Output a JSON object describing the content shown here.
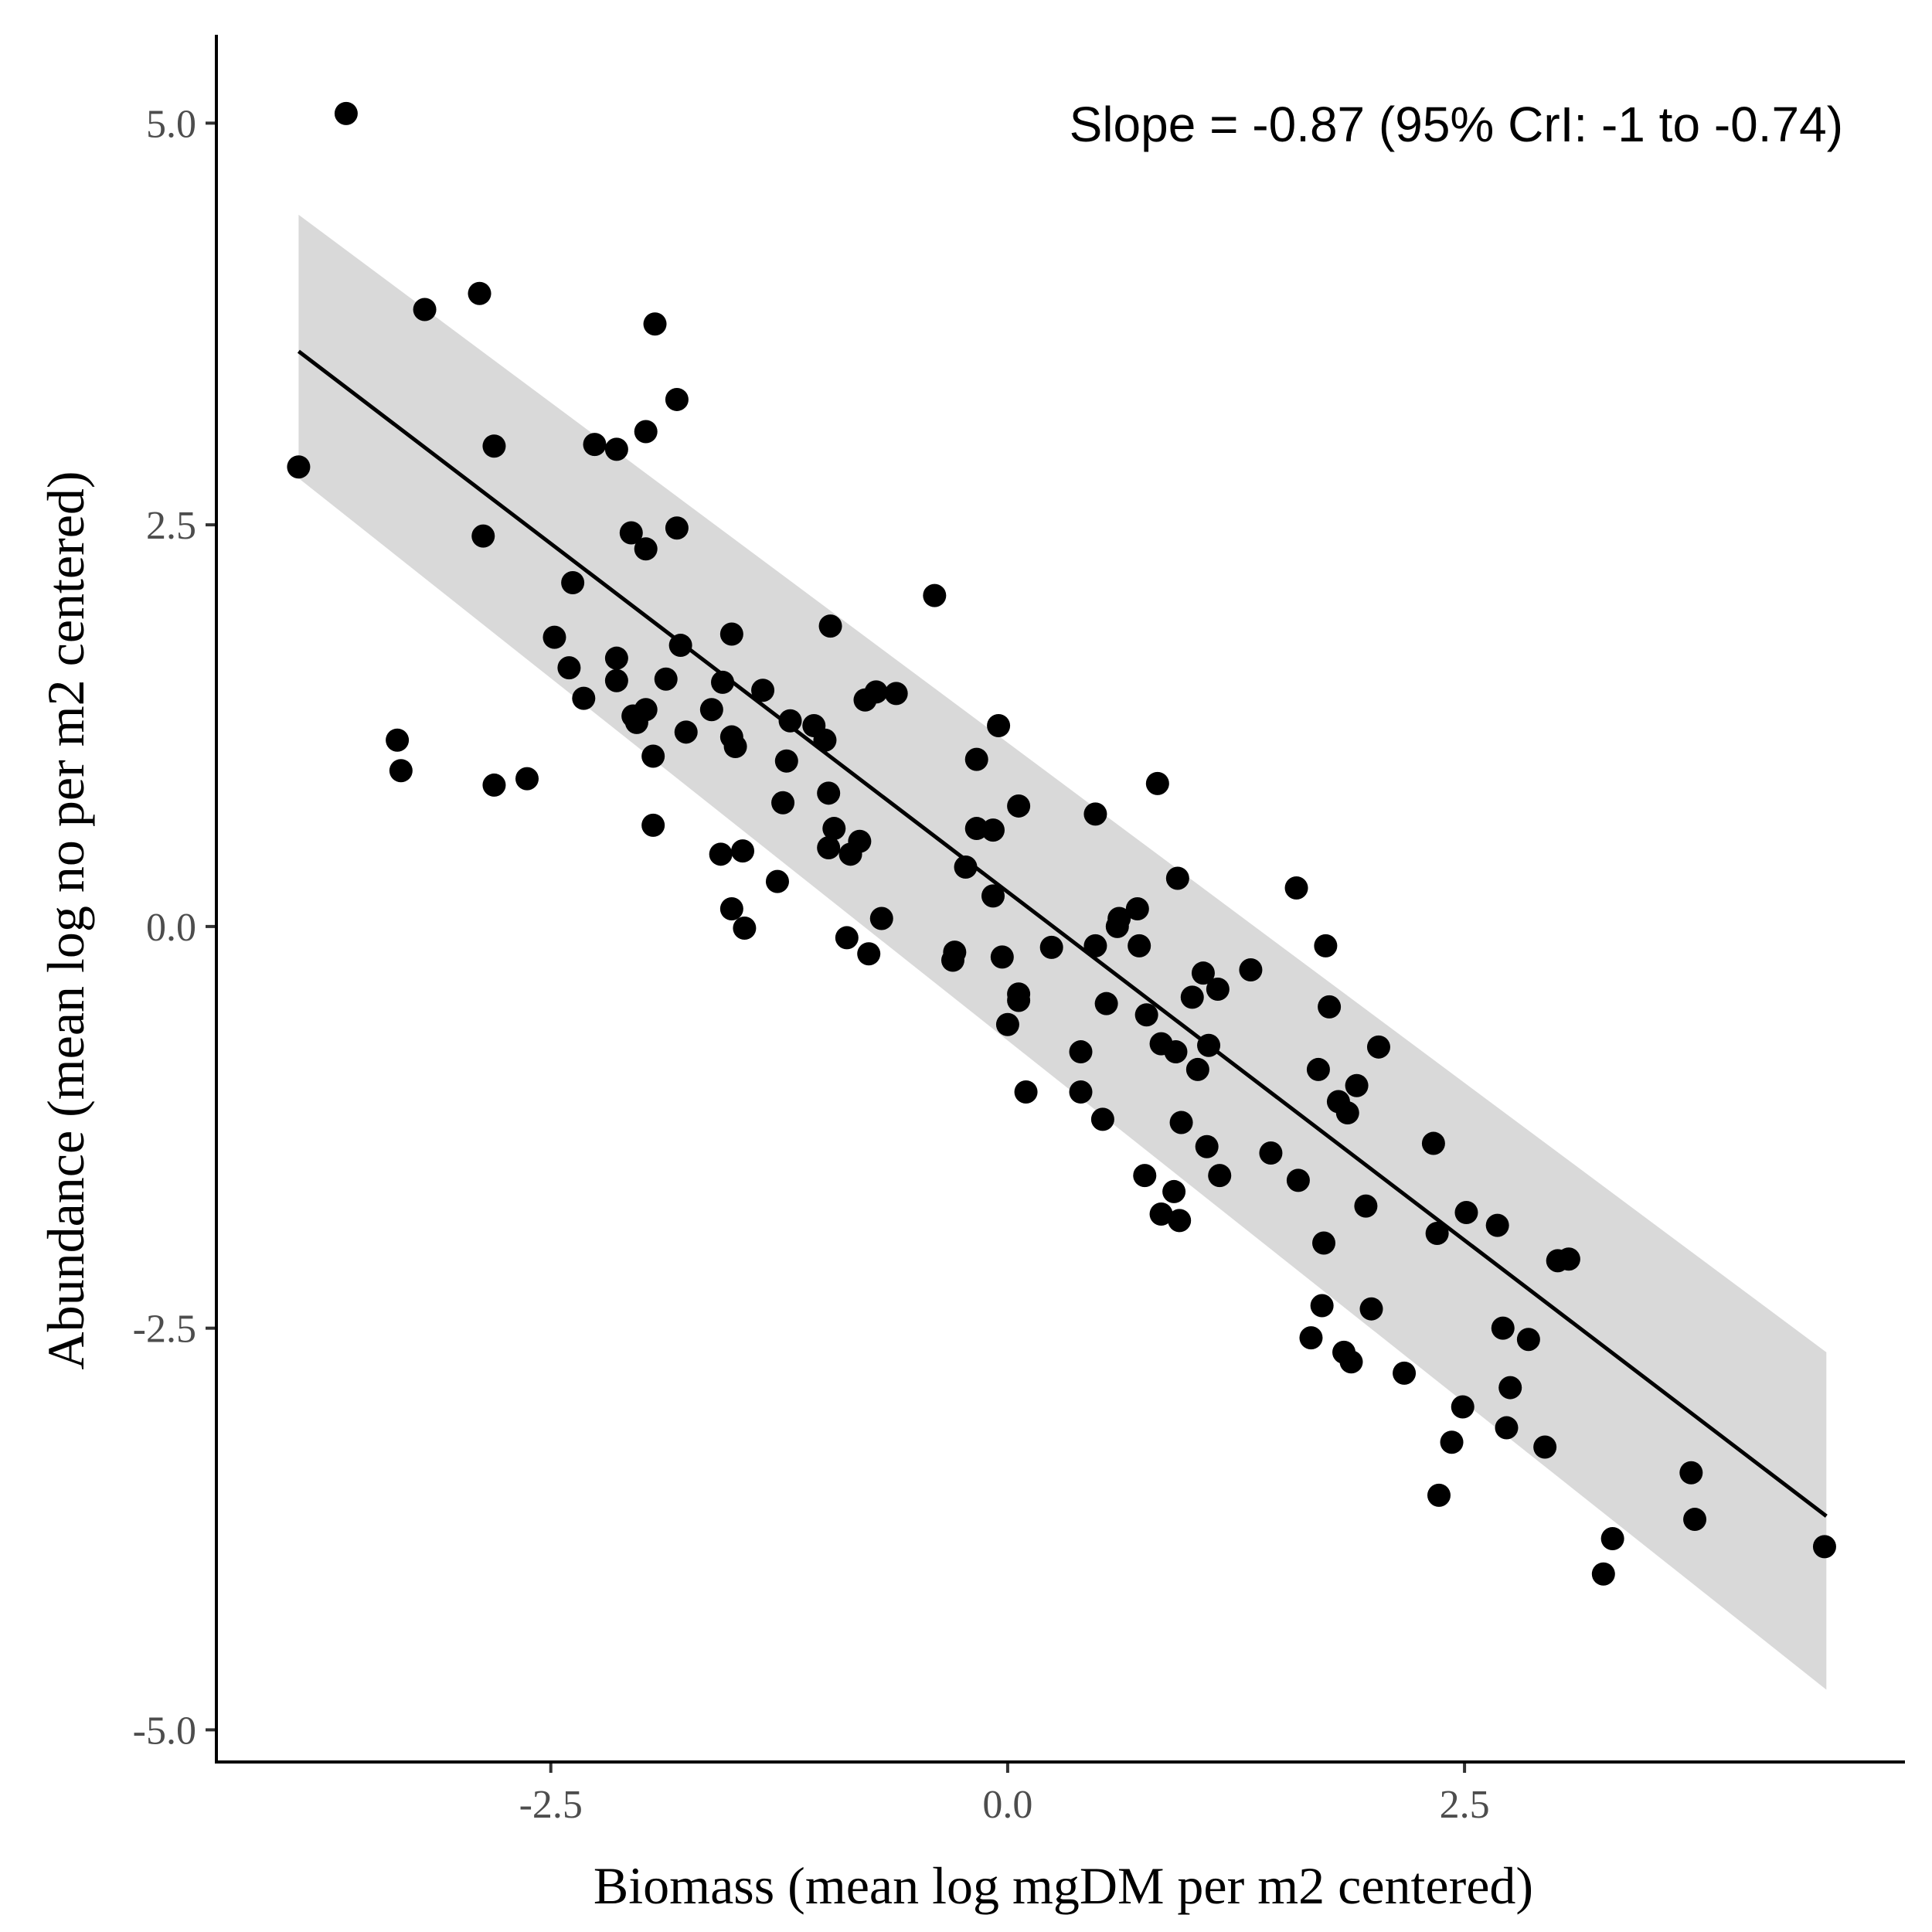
{
  "chart_data": {
    "type": "scatter",
    "xlabel": "Biomass (mean log mgDM per m2 centered)",
    "ylabel": "Abundance (mean log no per m2 centered)",
    "xlim": [
      -4.33,
      4.91
    ],
    "ylim": [
      -5.2,
      5.55
    ],
    "x_ticks": [
      -2.5,
      0.0,
      2.5
    ],
    "x_tick_labels": [
      "-2.5",
      "0.0",
      "2.5"
    ],
    "y_ticks": [
      -5.0,
      -2.5,
      0.0,
      2.5,
      5.0
    ],
    "y_tick_labels": [
      "-5.0",
      "-2.5",
      "0.0",
      "2.5",
      "5.0"
    ],
    "grid": false,
    "annotation": "Slope = -0.87 (95% CrI: -1 to -0.74)",
    "colors": {
      "points": "#000000",
      "line": "#000000",
      "ribbon": "#d9d9d9",
      "axis": "#000000"
    },
    "fit_line": {
      "x": [
        -3.88,
        4.48
      ],
      "y": [
        3.58,
        -3.67
      ]
    },
    "ribbon": {
      "x": [
        -3.88,
        4.48
      ],
      "upper": [
        4.43,
        -2.65
      ],
      "lower": [
        2.79,
        -4.75
      ]
    },
    "points": [
      [
        -3.88,
        2.86
      ],
      [
        -3.62,
        5.06
      ],
      [
        -3.19,
        3.84
      ],
      [
        -2.89,
        3.94
      ],
      [
        -2.81,
        2.99
      ],
      [
        -2.87,
        2.43
      ],
      [
        -3.34,
        1.16
      ],
      [
        -3.32,
        0.97
      ],
      [
        -2.81,
        0.88
      ],
      [
        -2.63,
        0.92
      ],
      [
        -2.38,
        2.14
      ],
      [
        -2.48,
        1.8
      ],
      [
        -2.4,
        1.61
      ],
      [
        -2.32,
        1.42
      ],
      [
        -2.14,
        1.67
      ],
      [
        -2.14,
        1.53
      ],
      [
        -2.05,
        1.31
      ],
      [
        -2.03,
        1.27
      ],
      [
        -1.98,
        1.35
      ],
      [
        -1.94,
        1.06
      ],
      [
        -1.94,
        0.63
      ],
      [
        -2.26,
        3.0
      ],
      [
        -2.14,
        2.97
      ],
      [
        -1.98,
        3.08
      ],
      [
        -1.93,
        3.75
      ],
      [
        -1.81,
        3.28
      ],
      [
        -2.06,
        2.45
      ],
      [
        -1.98,
        2.35
      ],
      [
        -1.81,
        2.48
      ],
      [
        -1.79,
        1.75
      ],
      [
        -1.76,
        1.21
      ],
      [
        -1.87,
        1.54
      ],
      [
        -1.62,
        1.35
      ],
      [
        -1.56,
        1.52
      ],
      [
        -1.51,
        1.82
      ],
      [
        -1.51,
        1.18
      ],
      [
        -1.49,
        1.12
      ],
      [
        -1.57,
        0.45
      ],
      [
        -1.45,
        0.47
      ],
      [
        -1.51,
        0.11
      ],
      [
        -1.44,
        -0.01
      ],
      [
        -1.34,
        1.47
      ],
      [
        -1.19,
        1.28
      ],
      [
        -1.21,
        1.03
      ],
      [
        -1.23,
        0.77
      ],
      [
        -1.26,
        0.28
      ],
      [
        -1.06,
        1.25
      ],
      [
        -1.0,
        1.16
      ],
      [
        -0.97,
        1.87
      ],
      [
        -0.98,
        0.83
      ],
      [
        -0.95,
        0.61
      ],
      [
        -0.98,
        0.49
      ],
      [
        -0.86,
        0.45
      ],
      [
        -0.81,
        0.53
      ],
      [
        -0.78,
        1.41
      ],
      [
        -0.72,
        1.46
      ],
      [
        -0.61,
        1.45
      ],
      [
        -0.88,
        -0.07
      ],
      [
        -0.76,
        -0.17
      ],
      [
        -0.69,
        0.05
      ],
      [
        -0.4,
        2.06
      ],
      [
        -0.23,
        0.37
      ],
      [
        -0.17,
        1.04
      ],
      [
        -0.17,
        0.61
      ],
      [
        -0.08,
        0.6
      ],
      [
        -0.05,
        1.25
      ],
      [
        0.06,
        0.75
      ],
      [
        -0.08,
        0.19
      ],
      [
        -0.3,
        -0.21
      ],
      [
        -0.29,
        -0.16
      ],
      [
        -0.03,
        -0.19
      ],
      [
        0.0,
        -0.61
      ],
      [
        0.06,
        -0.46
      ],
      [
        0.06,
        -0.42
      ],
      [
        0.1,
        -1.03
      ],
      [
        0.24,
        -0.13
      ],
      [
        0.48,
        0.7
      ],
      [
        0.48,
        -0.12
      ],
      [
        0.54,
        -0.48
      ],
      [
        0.4,
        -0.78
      ],
      [
        0.4,
        -1.03
      ],
      [
        0.52,
        -1.2
      ],
      [
        0.6,
        0.0
      ],
      [
        0.61,
        0.05
      ],
      [
        0.71,
        0.11
      ],
      [
        0.72,
        -0.12
      ],
      [
        0.76,
        -0.55
      ],
      [
        0.82,
        0.89
      ],
      [
        0.84,
        -0.73
      ],
      [
        0.92,
        -0.78
      ],
      [
        0.93,
        0.3
      ],
      [
        0.95,
        -1.22
      ],
      [
        0.75,
        -1.55
      ],
      [
        0.91,
        -1.65
      ],
      [
        0.84,
        -1.79
      ],
      [
        0.94,
        -1.83
      ],
      [
        1.01,
        -0.44
      ],
      [
        1.04,
        -0.89
      ],
      [
        1.07,
        -0.29
      ],
      [
        1.1,
        -0.74
      ],
      [
        1.15,
        -0.39
      ],
      [
        1.09,
        -1.37
      ],
      [
        1.16,
        -1.55
      ],
      [
        1.33,
        -0.27
      ],
      [
        1.44,
        -1.41
      ],
      [
        1.58,
        0.24
      ],
      [
        1.59,
        -1.58
      ],
      [
        1.66,
        -2.56
      ],
      [
        1.7,
        -0.89
      ],
      [
        1.72,
        -2.36
      ],
      [
        1.73,
        -1.97
      ],
      [
        1.74,
        -0.12
      ],
      [
        1.76,
        -0.5
      ],
      [
        1.81,
        -1.09
      ],
      [
        1.86,
        -1.16
      ],
      [
        1.84,
        -2.65
      ],
      [
        1.88,
        -2.71
      ],
      [
        1.91,
        -0.99
      ],
      [
        1.96,
        -1.74
      ],
      [
        1.99,
        -2.38
      ],
      [
        2.03,
        -0.75
      ],
      [
        2.17,
        -2.78
      ],
      [
        2.33,
        -1.35
      ],
      [
        2.35,
        -1.91
      ],
      [
        2.36,
        -3.54
      ],
      [
        2.43,
        -3.21
      ],
      [
        2.49,
        -2.99
      ],
      [
        2.51,
        -1.78
      ],
      [
        2.68,
        -1.86
      ],
      [
        2.71,
        -2.5
      ],
      [
        2.73,
        -3.12
      ],
      [
        2.75,
        -2.87
      ],
      [
        2.85,
        -2.57
      ],
      [
        2.94,
        -3.24
      ],
      [
        3.01,
        -2.08
      ],
      [
        3.07,
        -2.07
      ],
      [
        3.26,
        -4.03
      ],
      [
        3.31,
        -3.81
      ],
      [
        3.74,
        -3.4
      ],
      [
        3.76,
        -3.69
      ],
      [
        4.47,
        -3.86
      ]
    ]
  }
}
